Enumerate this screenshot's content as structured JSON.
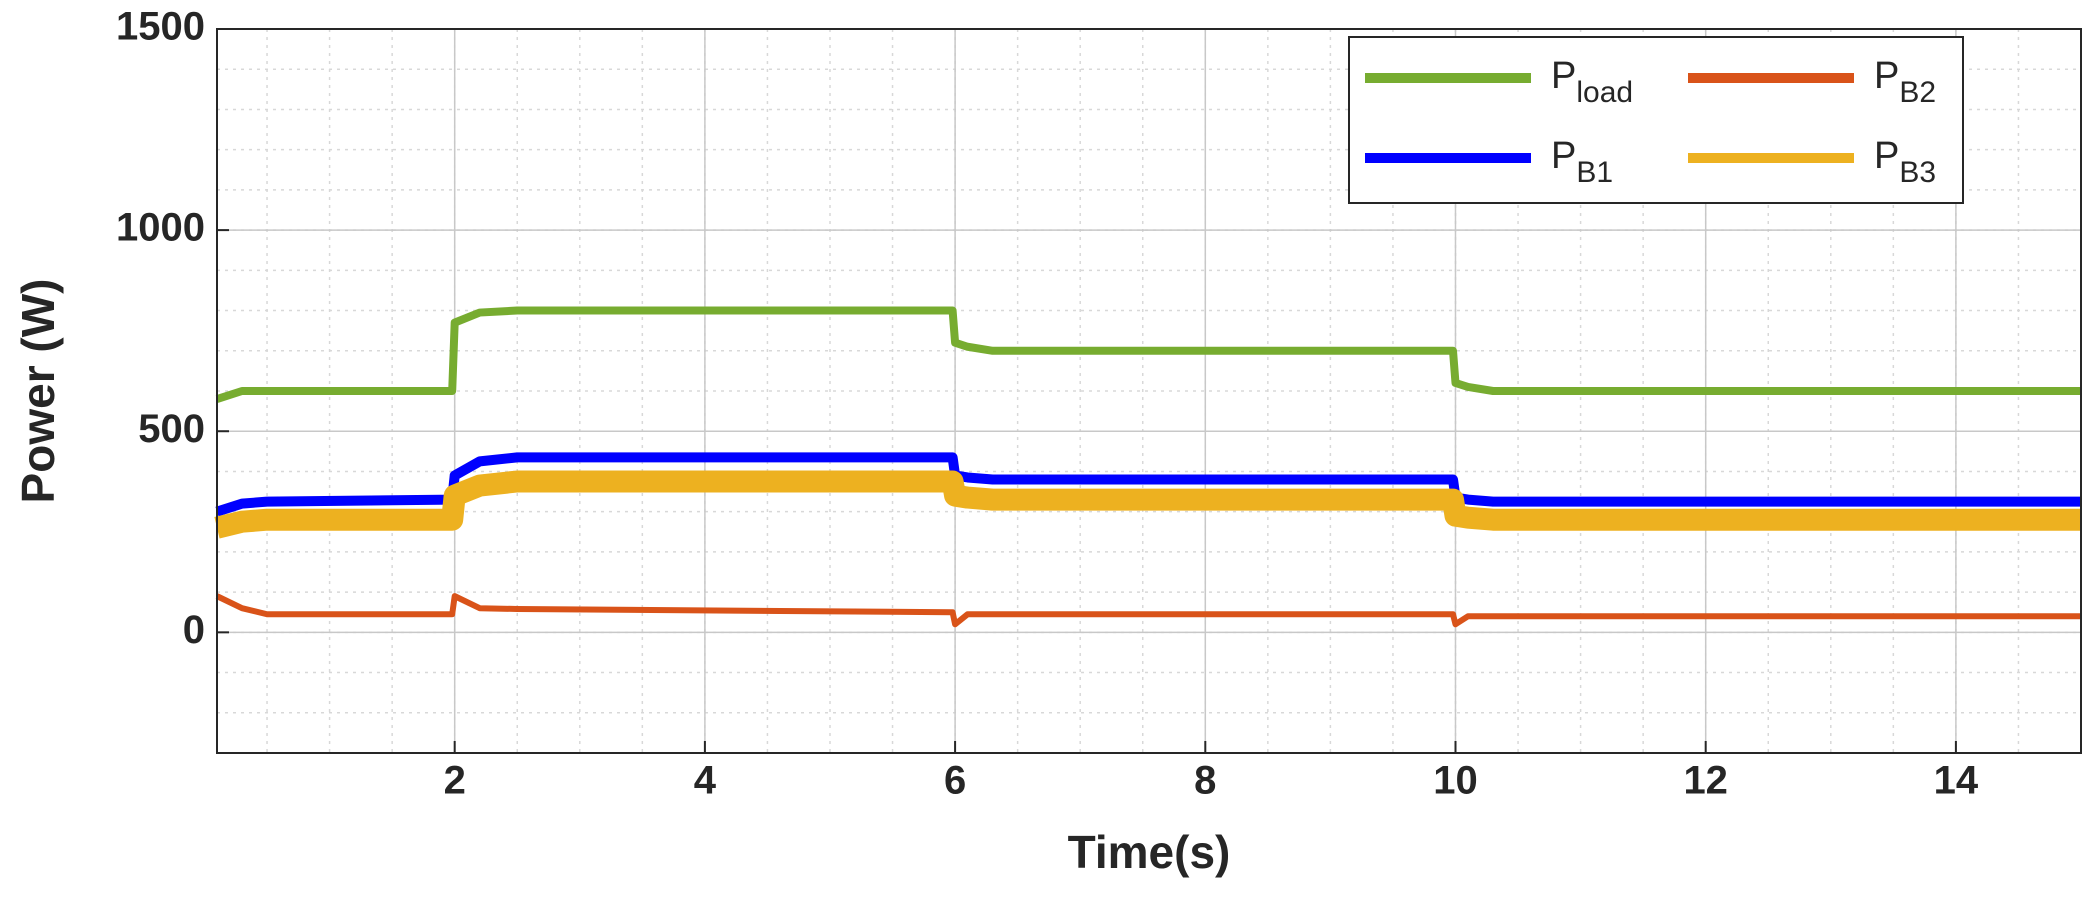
{
  "chart_data": {
    "type": "line",
    "x_label": "Time(s)",
    "y_label": "Power (W)",
    "x": [
      0.1,
      0.3,
      0.5,
      1.98,
      2.0,
      2.2,
      2.5,
      5.98,
      6.0,
      6.1,
      6.3,
      9.98,
      10.0,
      10.1,
      10.3,
      15
    ],
    "series": [
      {
        "name": "Pload",
        "color": "#77ac30",
        "values": [
          580,
          600,
          600,
          600,
          770,
          795,
          800,
          800,
          720,
          710,
          700,
          700,
          620,
          610,
          600,
          600
        ]
      },
      {
        "name": "PB1",
        "color": "#0000ff",
        "values": [
          300,
          320,
          325,
          330,
          390,
          425,
          435,
          435,
          390,
          385,
          380,
          380,
          335,
          330,
          325,
          325
        ]
      },
      {
        "name": "PB2",
        "color": "#d95319",
        "values": [
          90,
          60,
          45,
          45,
          90,
          60,
          58,
          50,
          20,
          45,
          45,
          45,
          20,
          40,
          40,
          40
        ]
      },
      {
        "name": "PB3",
        "color": "#edb120",
        "values": [
          260,
          275,
          280,
          280,
          340,
          365,
          375,
          375,
          340,
          335,
          330,
          330,
          290,
          285,
          280,
          280
        ]
      }
    ],
    "xlim": [
      0.1,
      15
    ],
    "ylim": [
      -300,
      1500
    ],
    "xticks": [
      2,
      4,
      6,
      8,
      10,
      12,
      14
    ],
    "yticks": [
      0,
      500,
      1000,
      1500
    ],
    "grid": true,
    "minor_grid": true,
    "legend": "upper right"
  }
}
